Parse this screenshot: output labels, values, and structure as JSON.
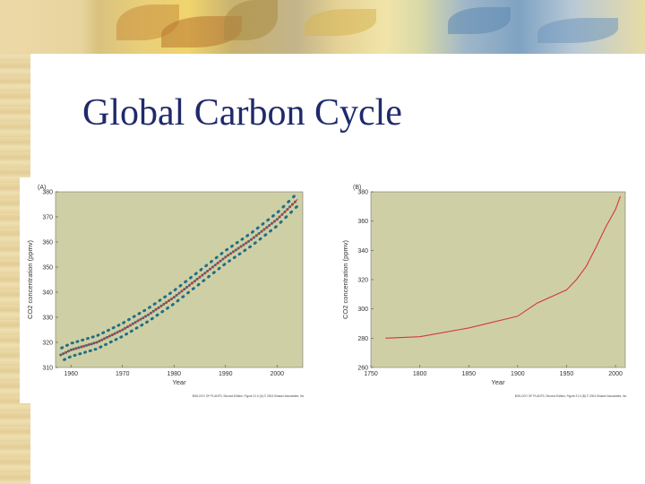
{
  "slide": {
    "title": "Global Carbon Cycle"
  },
  "colors": {
    "plot_bg": "#cfcfa5",
    "title": "#1f2a6b",
    "series_line": "#d13a3a",
    "dots": "#1e6f86"
  },
  "chart_data": [
    {
      "type": "line",
      "panel_label": "(A)",
      "xlabel": "Year",
      "ylabel": "CO2 concentration (ppmv)",
      "xlim": [
        1957,
        2005
      ],
      "ylim": [
        310,
        380
      ],
      "xticks": [
        "1960",
        "1970",
        "1980",
        "1990",
        "2000"
      ],
      "yticks": [
        "310",
        "320",
        "330",
        "340",
        "350",
        "360",
        "370",
        "380"
      ],
      "series": [
        {
          "x": [
            1958,
            1960,
            1965,
            1970,
            1975,
            1980,
            1985,
            1990,
            1995,
            2000,
            2004
          ],
          "y": [
            315,
            317,
            320,
            325,
            331,
            338,
            346,
            354,
            361,
            369,
            377
          ]
        }
      ],
      "seasonal_amplitude": 3,
      "credit": "BIOLOGY OF PLANTS, Second Edition, Figure 21.0 (A) © 2004 Sinauer Associates, Inc."
    },
    {
      "type": "line",
      "panel_label": "(B)",
      "xlabel": "Year",
      "ylabel": "CO2 concentration (ppmv)",
      "xlim": [
        1750,
        2010
      ],
      "ylim": [
        260,
        380
      ],
      "xticks": [
        "1750",
        "1800",
        "1850",
        "1900",
        "1950",
        "2000"
      ],
      "yticks": [
        "260",
        "280",
        "300",
        "320",
        "340",
        "360",
        "380"
      ],
      "series": [
        {
          "x": [
            1765,
            1800,
            1850,
            1900,
            1920,
            1950,
            1960,
            1970,
            1980,
            1990,
            2000,
            2005
          ],
          "y": [
            280,
            281,
            287,
            295,
            304,
            313,
            320,
            329,
            342,
            356,
            368,
            377
          ]
        }
      ],
      "credit": "BIOLOGY OF PLANTS, Second Edition, Figure 21.0 (B) © 2004 Sinauer Associates, Inc."
    }
  ]
}
